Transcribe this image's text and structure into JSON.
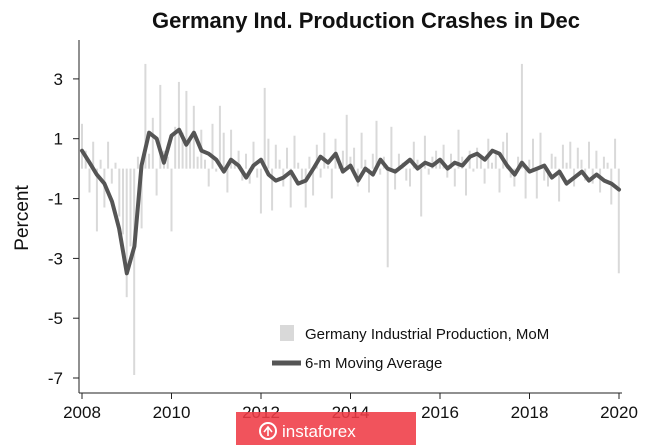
{
  "chart_data": {
    "type": "bar+line",
    "title": "Germany Ind. Production Crashes in Dec",
    "ylabel": "Percent",
    "xlabel": "",
    "xlim": [
      2008,
      2020
    ],
    "ylim": [
      -7.5,
      4.3
    ],
    "x_ticks": [
      "2008",
      "2010",
      "2012",
      "2014",
      "2016",
      "2018",
      "2020"
    ],
    "y_ticks": [
      "3",
      "1",
      "-1",
      "-3",
      "-5",
      "-7"
    ],
    "grid": false,
    "legend_position": "bottom-right",
    "series": [
      {
        "name": "Germany Industrial Production, MoM",
        "kind": "bar",
        "color": "#d9d9d9",
        "x_start": 2008.0,
        "step": 0.0833,
        "values": [
          1.5,
          0.6,
          -0.8,
          0.9,
          -2.1,
          0.3,
          -1.3,
          0.9,
          -0.5,
          0.2,
          -1.6,
          -2.2,
          -4.3,
          -2.6,
          -6.9,
          0.4,
          -2.0,
          3.5,
          0.5,
          1.7,
          -0.9,
          2.8,
          0.6,
          0.4,
          -2.1,
          1.4,
          2.9,
          1.2,
          2.6,
          0.9,
          2.1,
          0.4,
          1.3,
          0.3,
          -0.6,
          1.5,
          -0.1,
          2.1,
          1.2,
          -0.8,
          1.3,
          0.2,
          0.6,
          -0.4,
          0.5,
          -0.5,
          0.9,
          -0.3,
          -1.5,
          2.7,
          1.0,
          -1.4,
          0.8,
          0.3,
          -0.6,
          0.7,
          -1.3,
          1.1,
          0.2,
          -0.4,
          -1.3,
          0.4,
          -0.9,
          0.8,
          -0.3,
          1.2,
          0.1,
          -1.0,
          1.0,
          0.2,
          0.6,
          1.8,
          0.4,
          0.7,
          -0.6,
          1.2,
          0.3,
          -0.8,
          0.5,
          1.6,
          -0.2,
          0.4,
          -3.3,
          1.4,
          -0.7,
          0.5,
          0.2,
          -0.4,
          -0.6,
          0.9,
          0.3,
          -1.6,
          1.1,
          -0.2,
          0.4,
          0.6,
          0.2,
          0.8,
          -0.3,
          0.5,
          -0.6,
          1.3,
          0.4,
          -0.9,
          0.6,
          -0.1,
          0.7,
          0.4,
          -0.5,
          1.0,
          0.2,
          0.5,
          -0.8,
          0.9,
          1.2,
          -0.3,
          -0.6,
          0.4,
          3.5,
          -1.0,
          0.3,
          1.0,
          -1.0,
          1.2,
          -0.4,
          -0.6,
          0.5,
          0.4,
          -1.1,
          0.8,
          0.2,
          0.9,
          -0.6,
          0.7,
          0.3,
          -0.4,
          0.9,
          -0.5,
          0.6,
          -0.8,
          0.4,
          0.2,
          -1.2,
          1.0,
          -3.5
        ]
      },
      {
        "name": "6-m Moving Average",
        "kind": "line",
        "color": "#555555",
        "x": [
          2008.0,
          2008.17,
          2008.33,
          2008.5,
          2008.67,
          2008.83,
          2009.0,
          2009.17,
          2009.33,
          2009.5,
          2009.67,
          2009.83,
          2010.0,
          2010.17,
          2010.33,
          2010.5,
          2010.67,
          2010.83,
          2011.0,
          2011.17,
          2011.33,
          2011.5,
          2011.67,
          2011.83,
          2012.0,
          2012.17,
          2012.33,
          2012.5,
          2012.67,
          2012.83,
          2013.0,
          2013.17,
          2013.33,
          2013.5,
          2013.67,
          2013.83,
          2014.0,
          2014.17,
          2014.33,
          2014.5,
          2014.67,
          2014.83,
          2015.0,
          2015.17,
          2015.33,
          2015.5,
          2015.67,
          2015.83,
          2016.0,
          2016.17,
          2016.33,
          2016.5,
          2016.67,
          2016.83,
          2017.0,
          2017.17,
          2017.33,
          2017.5,
          2017.67,
          2017.83,
          2018.0,
          2018.17,
          2018.33,
          2018.5,
          2018.67,
          2018.83,
          2019.0,
          2019.17,
          2019.33,
          2019.5,
          2019.67,
          2019.83,
          2020.0
        ],
        "values": [
          0.6,
          0.2,
          -0.2,
          -0.5,
          -1.1,
          -2.0,
          -3.5,
          -2.6,
          0.1,
          1.2,
          1.0,
          0.2,
          1.1,
          1.3,
          0.8,
          1.2,
          0.6,
          0.5,
          0.3,
          -0.1,
          0.3,
          0.1,
          -0.3,
          0.1,
          0.3,
          -0.2,
          -0.4,
          -0.3,
          -0.1,
          -0.5,
          -0.4,
          0.0,
          0.4,
          0.2,
          0.5,
          -0.1,
          0.1,
          -0.4,
          0.0,
          -0.2,
          0.3,
          0.0,
          -0.1,
          0.1,
          0.3,
          0.0,
          0.2,
          0.1,
          0.3,
          0.0,
          0.2,
          0.1,
          0.4,
          0.5,
          0.3,
          0.6,
          0.5,
          0.1,
          -0.2,
          0.2,
          -0.1,
          0.0,
          0.1,
          -0.3,
          -0.1,
          -0.5,
          -0.3,
          -0.1,
          -0.4,
          -0.2,
          -0.4,
          -0.5,
          -0.7
        ]
      }
    ]
  },
  "legend": {
    "bar_label": "Germany Industrial Production, MoM",
    "line_label": "6-m Moving Average"
  },
  "watermark": {
    "text": "instaforex",
    "color": "#ef3b45"
  }
}
